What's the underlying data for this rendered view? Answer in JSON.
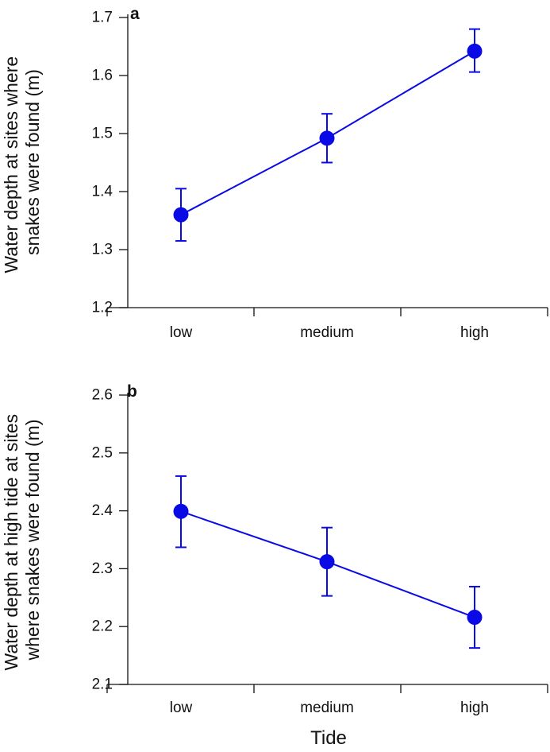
{
  "colors": {
    "series": "#0a0ae6",
    "axis": "#111111"
  },
  "chart_data": [
    {
      "type": "line",
      "panel_label": "a",
      "categories": [
        "low",
        "medium",
        "high"
      ],
      "series": [
        {
          "name": "Water depth",
          "values": [
            1.36,
            1.492,
            1.642
          ],
          "error_low": [
            1.315,
            1.45,
            1.606
          ],
          "error_high": [
            1.405,
            1.534,
            1.68
          ]
        }
      ],
      "xlabel": "",
      "ylabel_lines": [
        "Water depth at sites where",
        "snakes were found (m)"
      ],
      "ylim": [
        1.2,
        1.7
      ],
      "yticks": [
        "1.2",
        "1.3",
        "1.4",
        "1.5",
        "1.6",
        "1.7"
      ],
      "grid": false
    },
    {
      "type": "line",
      "panel_label": "b",
      "categories": [
        "low",
        "medium",
        "high"
      ],
      "series": [
        {
          "name": "Water depth at high tide",
          "values": [
            2.399,
            2.312,
            2.216
          ],
          "error_low": [
            2.337,
            2.253,
            2.163
          ],
          "error_high": [
            2.46,
            2.371,
            2.269
          ]
        }
      ],
      "xlabel": "Tide",
      "ylabel_lines": [
        "Water depth at high tide at sites",
        "where snakes were found (m)"
      ],
      "ylim": [
        2.1,
        2.6
      ],
      "yticks": [
        "2.1",
        "2.2",
        "2.3",
        "2.4",
        "2.5",
        "2.6"
      ],
      "grid": false
    }
  ]
}
